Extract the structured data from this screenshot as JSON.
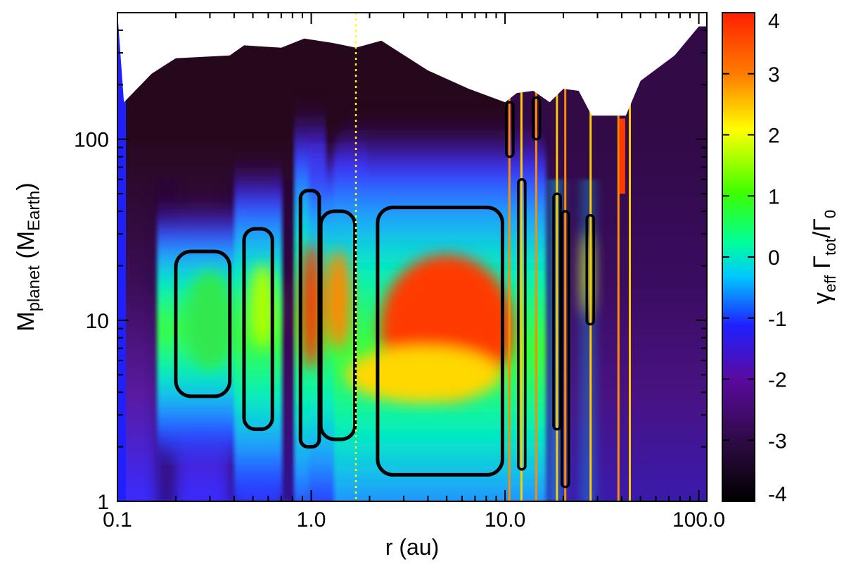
{
  "chart_data": {
    "type": "heatmap",
    "title": "",
    "xlabel": "r (au)",
    "ylabel": "M_planet (M_Earth)",
    "xscale": "log",
    "yscale": "log",
    "xlim": [
      0.1,
      110
    ],
    "ylim": [
      1,
      500
    ],
    "x_ticks": [
      {
        "value": 0.1,
        "label": "0.1"
      },
      {
        "value": 1.0,
        "label": "1.0"
      },
      {
        "value": 10.0,
        "label": "10.0"
      },
      {
        "value": 100.0,
        "label": "100.0"
      }
    ],
    "y_ticks": [
      {
        "value": 1,
        "label": "1"
      },
      {
        "value": 10,
        "label": "10"
      },
      {
        "value": 100,
        "label": "100"
      }
    ],
    "colorbar": {
      "label": "γ_eff Γ_tot/Γ_0",
      "range": [
        -4,
        4
      ],
      "ticks": [
        "-4",
        "-3",
        "-2",
        "-1",
        "0",
        "1",
        "2",
        "3",
        "4"
      ],
      "colormap": [
        "#000000",
        "#2a0a3c",
        "#5a0aa0",
        "#2020ff",
        "#00c8ff",
        "#00ff7f",
        "#3cff00",
        "#ffff00",
        "#ff8000",
        "#ff2000"
      ]
    },
    "annotations": [
      {
        "type": "vertical-dotted-line",
        "x": 1.7,
        "color": "#ffff00"
      }
    ],
    "zero_contour_regions": [
      {
        "r_range": [
          0.2,
          0.38
        ],
        "m_range": [
          3.8,
          24
        ]
      },
      {
        "r_range": [
          0.45,
          0.63
        ],
        "m_range": [
          2.5,
          32
        ]
      },
      {
        "r_range": [
          0.88,
          1.1
        ],
        "m_range": [
          2.0,
          52
        ]
      },
      {
        "r_range": [
          1.12,
          1.68
        ],
        "m_range": [
          2.2,
          40
        ]
      },
      {
        "r_range": [
          2.2,
          9.7
        ],
        "m_range": [
          1.4,
          42
        ]
      }
    ],
    "upper_boundary": [
      {
        "r": 0.1,
        "m": 500
      },
      {
        "r": 0.108,
        "m": 160
      },
      {
        "r": 0.15,
        "m": 230
      },
      {
        "r": 0.2,
        "m": 280
      },
      {
        "r": 0.38,
        "m": 290
      },
      {
        "r": 0.45,
        "m": 330
      },
      {
        "r": 0.7,
        "m": 320
      },
      {
        "r": 0.92,
        "m": 360
      },
      {
        "r": 1.3,
        "m": 340
      },
      {
        "r": 1.7,
        "m": 320
      },
      {
        "r": 2.3,
        "m": 350
      },
      {
        "r": 4.0,
        "m": 240
      },
      {
        "r": 6.5,
        "m": 190
      },
      {
        "r": 10.0,
        "m": 160
      },
      {
        "r": 11.5,
        "m": 180
      },
      {
        "r": 14.0,
        "m": 185
      },
      {
        "r": 17.0,
        "m": 160
      },
      {
        "r": 20.0,
        "m": 190
      },
      {
        "r": 24.0,
        "m": 185
      },
      {
        "r": 28.0,
        "m": 135
      },
      {
        "r": 42.0,
        "m": 135
      },
      {
        "r": 50.0,
        "m": 210
      },
      {
        "r": 75.0,
        "m": 290
      },
      {
        "r": 100.0,
        "m": 420
      }
    ]
  }
}
